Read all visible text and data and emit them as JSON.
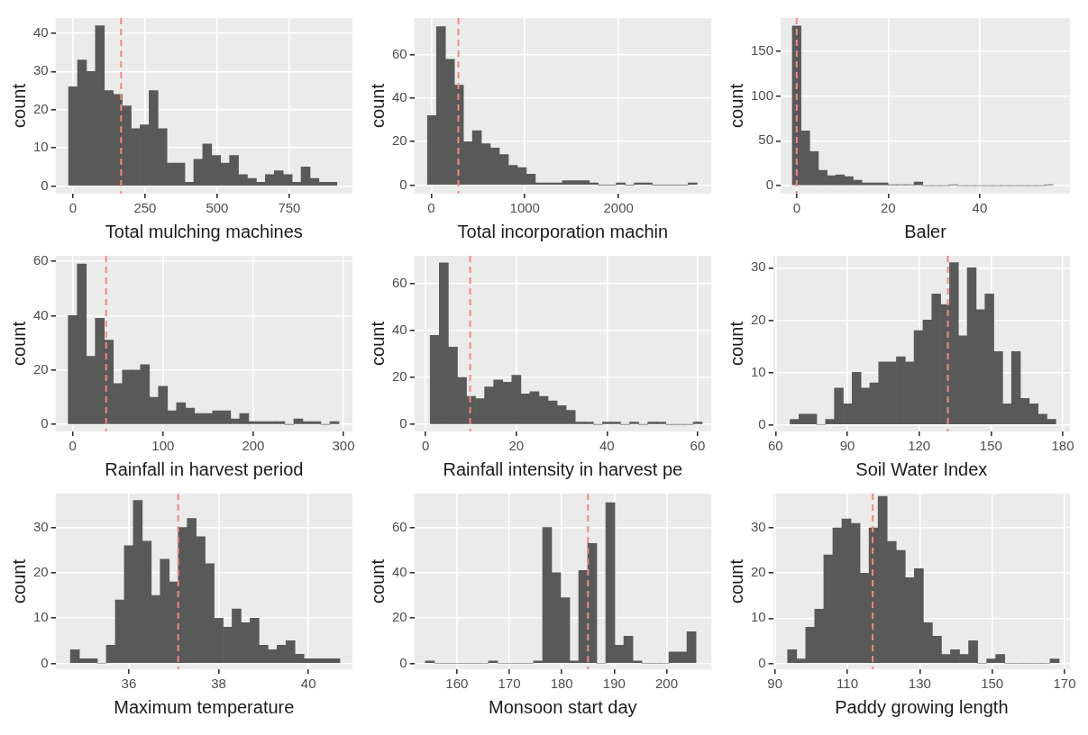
{
  "chart_data": [
    {
      "type": "histogram",
      "xlabel": "Total mulching machines",
      "ylabel": "count",
      "color": "#595959",
      "grid": true,
      "bins": [
        -15,
        16,
        47,
        78,
        109,
        140,
        171,
        202,
        233,
        264,
        295,
        326,
        357,
        388,
        419,
        450,
        481,
        512,
        543,
        574,
        605,
        636,
        667,
        698,
        729,
        760,
        791,
        822,
        853,
        884,
        915
      ],
      "values": [
        26,
        33,
        30,
        42,
        25,
        24,
        21,
        15,
        16,
        25,
        15,
        6,
        6,
        1,
        7,
        11,
        8,
        6,
        8,
        3,
        2,
        1,
        3,
        4,
        3,
        1,
        5,
        2,
        1,
        1
      ],
      "xlim": [
        -60,
        969
      ],
      "xticks": [
        0,
        250,
        500,
        750
      ],
      "ylim": [
        -2,
        44
      ],
      "yticks": [
        0,
        10,
        20,
        30,
        40
      ],
      "ref_lines": [
        {
          "axis": "x",
          "value": 167,
          "color": "#ef8a80",
          "line_style": "dashed"
        }
      ]
    },
    {
      "type": "histogram",
      "xlabel": "Total incorporation machin",
      "ylabel": "count",
      "color": "#595959",
      "grid": true,
      "bins": [
        -40,
        56,
        152,
        248,
        344,
        440,
        536,
        632,
        728,
        824,
        920,
        1016,
        1112,
        1208,
        1304,
        1400,
        1496,
        1592,
        1688,
        1784,
        1880,
        1976,
        2072,
        2168,
        2264,
        2360,
        2456,
        2552,
        2648,
        2744,
        2840
      ],
      "values": [
        32,
        73,
        58,
        46,
        20,
        25,
        19,
        17,
        14,
        9,
        8,
        5,
        1,
        1,
        1,
        2,
        2,
        2,
        1,
        0,
        0,
        1,
        0,
        1,
        1,
        0,
        0,
        0,
        0,
        1
      ],
      "xlim": [
        -180,
        2990
      ],
      "xticks": [
        0,
        1000,
        2000
      ],
      "ylim": [
        -4,
        77
      ],
      "yticks": [
        0,
        20,
        40,
        60
      ],
      "ref_lines": [
        {
          "axis": "x",
          "value": 290,
          "color": "#ef8a80",
          "line_style": "dashed"
        }
      ]
    },
    {
      "type": "histogram",
      "xlabel": "Baler",
      "ylabel": "count",
      "color": "#595959",
      "grid": true,
      "bins": [
        -0.95,
        0.95,
        2.85,
        4.75,
        6.65,
        8.55,
        10.45,
        12.35,
        14.25,
        16.15,
        18.05,
        19.95,
        21.85,
        23.75,
        25.65,
        27.55,
        29.45,
        31.35,
        33.25,
        35.15,
        37.05,
        38.95,
        40.85,
        42.75,
        44.65,
        46.55,
        48.45,
        50.35,
        52.25,
        54.15,
        56.05
      ],
      "values": [
        178,
        61,
        38,
        17,
        11,
        12,
        10,
        6,
        3,
        3,
        3,
        1,
        1,
        1,
        4,
        0,
        0,
        0,
        1,
        0,
        0,
        0,
        0,
        0,
        0,
        0,
        0,
        0,
        0,
        1
      ],
      "xlim": [
        -3.5,
        59.7
      ],
      "xticks": [
        0,
        20,
        40
      ],
      "ylim": [
        -9,
        187
      ],
      "yticks": [
        0,
        50,
        100,
        150
      ],
      "ref_lines": [
        {
          "axis": "x",
          "value": 0,
          "color": "#ef8a80",
          "line_style": "dashed"
        }
      ]
    },
    {
      "type": "histogram",
      "xlabel": "Rainfall in harvest period",
      "ylabel": "count",
      "color": "#595959",
      "grid": true,
      "bins": [
        -5,
        5,
        15,
        25,
        35,
        45,
        55,
        65,
        75,
        85,
        95,
        105,
        115,
        125,
        135,
        145,
        155,
        165,
        175,
        185,
        195,
        205,
        215,
        225,
        235,
        245,
        255,
        265,
        275,
        285,
        295
      ],
      "values": [
        40,
        59,
        25,
        39,
        31,
        15,
        20,
        20,
        22,
        10,
        14,
        5,
        8,
        6,
        4,
        4,
        5,
        5,
        2,
        4,
        1,
        1,
        1,
        1,
        0,
        2,
        1,
        1,
        0,
        1
      ],
      "xlim": [
        -19,
        310
      ],
      "xticks": [
        0,
        100,
        200,
        300
      ],
      "ylim": [
        -2.6,
        62
      ],
      "yticks": [
        0,
        20,
        40,
        60
      ],
      "ref_lines": [
        {
          "axis": "x",
          "value": 37,
          "color": "#ef8a80",
          "line_style": "dashed"
        }
      ]
    },
    {
      "type": "histogram",
      "xlabel": "Rainfall intensity in harvest pe",
      "ylabel": "count",
      "color": "#595959",
      "grid": true,
      "bins": [
        1,
        3,
        5,
        7,
        9,
        11,
        13,
        15,
        17,
        19,
        21,
        23,
        25,
        27,
        29,
        31,
        33,
        35,
        37,
        39,
        41,
        43,
        45,
        47,
        49,
        51,
        53,
        55,
        57,
        59,
        61
      ],
      "values": [
        38,
        69,
        33,
        20,
        12,
        11,
        16,
        19,
        18,
        21,
        13,
        14,
        12,
        10,
        8,
        6,
        1,
        1,
        0,
        1,
        1,
        0,
        1,
        0,
        1,
        1,
        0,
        0,
        0,
        1
      ],
      "xlim": [
        -2.5,
        63
      ],
      "xticks": [
        0,
        20,
        40,
        60
      ],
      "ylim": [
        -3,
        72
      ],
      "yticks": [
        0,
        20,
        40,
        60
      ],
      "ref_lines": [
        {
          "axis": "x",
          "value": 9.8,
          "color": "#ef8a80",
          "line_style": "dashed"
        }
      ]
    },
    {
      "type": "histogram",
      "xlabel": "Soil Water Index",
      "ylabel": "count",
      "color": "#595959",
      "grid": true,
      "bins": [
        66.1,
        69.8,
        73.5,
        77.2,
        80.9,
        84.6,
        88.3,
        92,
        95.7,
        99.4,
        103.1,
        106.8,
        110.5,
        114.2,
        117.9,
        121.6,
        125.3,
        129,
        132.7,
        136.4,
        140.1,
        143.8,
        147.5,
        151.2,
        154.9,
        158.6,
        162.3,
        166,
        169.7,
        173.4,
        177.1
      ],
      "values": [
        1,
        2,
        2,
        0,
        1,
        7,
        4,
        10,
        7,
        8,
        12,
        12,
        13,
        12,
        18,
        20,
        25,
        23,
        31,
        17,
        30,
        22,
        25,
        14,
        4,
        14,
        5,
        4,
        2,
        1
      ],
      "xlim": [
        59,
        183
      ],
      "xticks": [
        60,
        90,
        120,
        150,
        180
      ],
      "ylim": [
        -1.3,
        32.3
      ],
      "yticks": [
        0,
        10,
        20,
        30
      ],
      "ref_lines": [
        {
          "axis": "x",
          "value": 132,
          "color": "#ef8a80",
          "line_style": "dashed"
        }
      ]
    },
    {
      "type": "histogram",
      "xlabel": "Maximum temperature",
      "ylabel": "count",
      "color": "#595959",
      "grid": true,
      "bins": [
        34.7,
        34.9,
        35.1,
        35.3,
        35.5,
        35.7,
        35.9,
        36.1,
        36.3,
        36.5,
        36.7,
        36.9,
        37.1,
        37.3,
        37.5,
        37.7,
        37.9,
        38.1,
        38.3,
        38.5,
        38.7,
        38.9,
        39.1,
        39.3,
        39.5,
        39.7,
        39.9,
        40.1,
        40.3,
        40.5,
        40.7
      ],
      "values": [
        3,
        1,
        1,
        0,
        4,
        14,
        26,
        36,
        27,
        15,
        23,
        18,
        30,
        32,
        28,
        22,
        10,
        8,
        12,
        9,
        10,
        4,
        3,
        4,
        5,
        2,
        1,
        1,
        1,
        1
      ],
      "xlim": [
        34.37,
        40.98
      ],
      "xticks": [
        36,
        38,
        40
      ],
      "ylim": [
        -1.3,
        37.5
      ],
      "yticks": [
        0,
        10,
        20,
        30
      ],
      "ref_lines": [
        {
          "axis": "x",
          "value": 37.1,
          "color": "#ef8a80",
          "line_style": "dashed"
        }
      ]
    },
    {
      "type": "histogram",
      "xlabel": "Monsoon start day",
      "ylabel": "count",
      "color": "#595959",
      "grid": true,
      "bins": [
        154,
        155.72,
        157.44,
        159.16,
        160.88,
        162.6,
        164.32,
        166.04,
        167.76,
        169.48,
        171.2,
        172.92,
        174.64,
        176.36,
        178.08,
        179.8,
        181.52,
        183.24,
        184.96,
        186.68,
        188.4,
        190.12,
        191.84,
        193.56,
        195.28,
        197,
        198.72,
        200.44,
        202.16,
        203.88,
        205.6
      ],
      "values": [
        1,
        0,
        0,
        0,
        0,
        0,
        0,
        1,
        0,
        0,
        0,
        0,
        1,
        60,
        40,
        29,
        1,
        41,
        53,
        0,
        71,
        8,
        12,
        1,
        0,
        0,
        0,
        5,
        5,
        14
      ],
      "xlim": [
        151.9,
        208.5
      ],
      "xticks": [
        160,
        170,
        180,
        190,
        200
      ],
      "ylim": [
        -2.6,
        75
      ],
      "yticks": [
        0,
        20,
        40,
        60
      ],
      "ref_lines": [
        {
          "axis": "x",
          "value": 185,
          "color": "#ef8a80",
          "line_style": "dashed"
        }
      ]
    },
    {
      "type": "histogram",
      "xlabel": "Paddy growing length",
      "ylabel": "count",
      "color": "#595959",
      "grid": true,
      "bins": [
        93.5,
        96,
        98.5,
        101,
        103.5,
        106,
        108.5,
        111,
        113.5,
        116,
        118.5,
        121,
        123.5,
        126,
        128.5,
        131,
        133.5,
        136,
        138.5,
        141,
        143.5,
        146,
        148.5,
        151,
        153.5,
        156,
        158.5,
        161,
        163.5,
        166,
        168.5
      ],
      "values": [
        3,
        1,
        8,
        12,
        24,
        30,
        32,
        31,
        20,
        30,
        37,
        27,
        25,
        19,
        21,
        9,
        6,
        2,
        3,
        2,
        5,
        0,
        1,
        2,
        0,
        0,
        0,
        0,
        0,
        1
      ],
      "xlim": [
        89.5,
        171.5
      ],
      "xticks": [
        90,
        110,
        130,
        150,
        170
      ],
      "ylim": [
        -1.3,
        37.6
      ],
      "yticks": [
        0,
        10,
        20,
        30
      ],
      "ref_lines": [
        {
          "axis": "x",
          "value": 117,
          "color": "#ef8a80",
          "line_style": "dashed"
        }
      ]
    }
  ]
}
